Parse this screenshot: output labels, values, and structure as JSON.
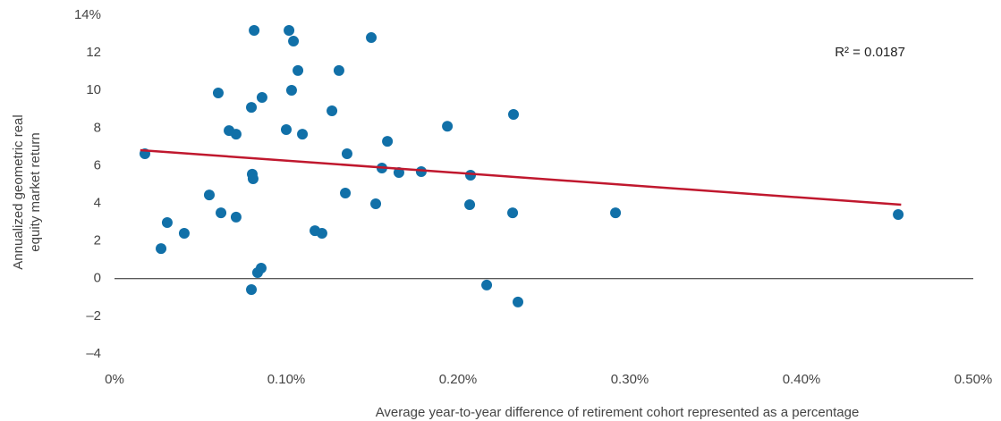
{
  "chart_data": {
    "type": "scatter",
    "xlabel": "Average year-to-year difference of retirement cohort represented as a percentage",
    "ylabel": [
      "Annualized geometric real",
      "equity market return"
    ],
    "annotation": "R² = 0.0187",
    "xlim": [
      0,
      0.5
    ],
    "xticks": [
      {
        "value": 0,
        "label": "0%"
      },
      {
        "value": 0.1,
        "label": "0.10%"
      },
      {
        "value": 0.2,
        "label": "0.20%"
      },
      {
        "value": 0.3,
        "label": "0.30%"
      },
      {
        "value": 0.4,
        "label": "0.40%"
      },
      {
        "value": 0.5,
        "label": "0.50%"
      }
    ],
    "ylim": [
      -4,
      14
    ],
    "yticks": [
      {
        "value": -4,
        "label": "–4"
      },
      {
        "value": -2,
        "label": "–2"
      },
      0,
      2,
      4,
      6,
      8,
      10,
      12,
      {
        "value": 14,
        "label": "14%"
      }
    ],
    "color": "#1170a8",
    "x": [
      0.0177,
      0.0271,
      0.0307,
      0.0406,
      0.0552,
      0.062,
      0.0667,
      0.0708,
      0.0708,
      0.0604,
      0.0813,
      0.0797,
      0.0802,
      0.0807,
      0.0797,
      0.0833,
      0.0854,
      0.0859,
      0.1016,
      0.1042,
      0.1068,
      0.1031,
      0.1,
      0.1094,
      0.1167,
      0.1208,
      0.1307,
      0.1266,
      0.1354,
      0.1344,
      0.1495,
      0.1557,
      0.1589,
      0.1656,
      0.1521,
      0.1786,
      0.1938,
      0.2073,
      0.2068,
      0.2167,
      0.2323,
      0.2318,
      0.2349,
      0.2917,
      0.4563
    ],
    "values": [
      6.64,
      1.6,
      2.98,
      2.41,
      4.45,
      3.5,
      7.87,
      7.68,
      3.27,
      9.87,
      13.19,
      9.1,
      5.55,
      5.31,
      -0.58,
      0.32,
      0.56,
      9.63,
      13.19,
      12.62,
      11.06,
      10.01,
      7.92,
      7.68,
      2.55,
      2.41,
      11.06,
      8.92,
      6.64,
      4.55,
      12.81,
      5.88,
      7.3,
      5.64,
      3.98,
      5.69,
      8.1,
      5.5,
      3.93,
      -0.34,
      8.73,
      3.5,
      -1.24,
      3.5,
      3.41
    ],
    "trend": {
      "color": "#c0182e",
      "x": [
        0.015,
        0.458
      ],
      "values": [
        6.83,
        3.93
      ]
    }
  }
}
